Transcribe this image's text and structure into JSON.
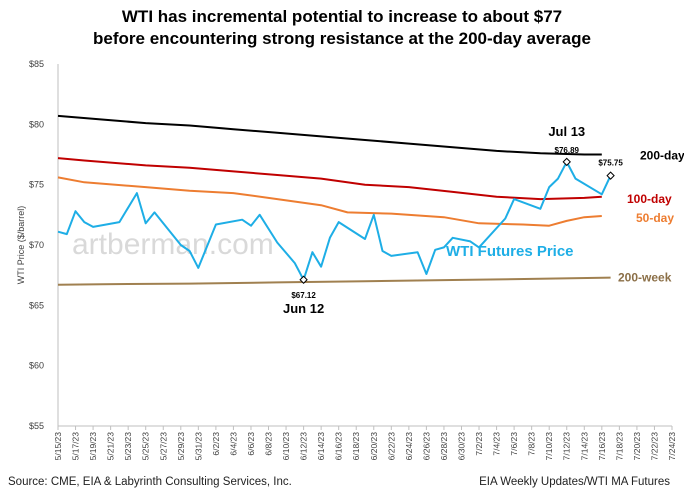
{
  "title_line1": "WTI has incremental potential to increase to about $77",
  "title_line2": "before encountering strong resistance at the 200-day average",
  "watermark": "artberman.com",
  "source_left": "Source:  CME, EIA & Labyrinth Consulting Services, Inc.",
  "source_right": "EIA Weekly Updates/WTI MA Futures",
  "chart_data": {
    "type": "line",
    "ylabel": "WTI Price ($/barrel)",
    "xlabel": "",
    "ylim": [
      55,
      85
    ],
    "yticks": [
      "$55",
      "$60",
      "$65",
      "$70",
      "$75",
      "$80",
      "$85"
    ],
    "xticks": [
      "5/15/23",
      "5/17/23",
      "5/19/23",
      "5/21/23",
      "5/23/23",
      "5/25/23",
      "5/27/23",
      "5/29/23",
      "5/31/23",
      "6/2/23",
      "6/4/23",
      "6/6/23",
      "6/8/23",
      "6/10/23",
      "6/12/23",
      "6/14/23",
      "6/16/23",
      "6/18/23",
      "6/20/23",
      "6/22/23",
      "6/24/23",
      "6/26/23",
      "6/28/23",
      "6/30/23",
      "7/2/23",
      "7/4/23",
      "7/6/23",
      "7/8/23",
      "7/10/23",
      "7/12/23",
      "7/14/23",
      "7/16/23",
      "7/18/23",
      "7/20/23",
      "7/22/23",
      "7/24/23"
    ],
    "grid": false,
    "series": [
      {
        "name": "200-day",
        "color": "#000000",
        "points": [
          [
            0,
            80.7
          ],
          [
            5,
            80.4
          ],
          [
            10,
            80.1
          ],
          [
            15,
            79.9
          ],
          [
            20,
            79.6
          ],
          [
            25,
            79.3
          ],
          [
            30,
            79.0
          ],
          [
            35,
            78.7
          ],
          [
            40,
            78.4
          ],
          [
            45,
            78.1
          ],
          [
            50,
            77.8
          ],
          [
            55,
            77.6
          ],
          [
            60,
            77.5
          ],
          [
            62,
            77.5
          ]
        ]
      },
      {
        "name": "100-day",
        "color": "#c00000",
        "points": [
          [
            0,
            77.2
          ],
          [
            3,
            77.0
          ],
          [
            10,
            76.6
          ],
          [
            15,
            76.4
          ],
          [
            20,
            76.1
          ],
          [
            25,
            75.8
          ],
          [
            30,
            75.5
          ],
          [
            35,
            75.0
          ],
          [
            40,
            74.8
          ],
          [
            45,
            74.4
          ],
          [
            50,
            74.0
          ],
          [
            55,
            73.8
          ],
          [
            60,
            73.9
          ],
          [
            62,
            74.0
          ]
        ]
      },
      {
        "name": "50-day",
        "color": "#ed7d31",
        "points": [
          [
            0,
            75.6
          ],
          [
            3,
            75.2
          ],
          [
            10,
            74.8
          ],
          [
            15,
            74.5
          ],
          [
            20,
            74.3
          ],
          [
            25,
            73.8
          ],
          [
            30,
            73.3
          ],
          [
            33,
            72.7
          ],
          [
            38,
            72.6
          ],
          [
            44,
            72.3
          ],
          [
            48,
            71.8
          ],
          [
            53,
            71.7
          ],
          [
            56,
            71.6
          ],
          [
            58,
            72.0
          ],
          [
            60,
            72.3
          ],
          [
            62,
            72.4
          ]
        ]
      },
      {
        "name": "WTI Futures Price",
        "color": "#1eaee6",
        "points": [
          [
            0,
            71.1
          ],
          [
            1,
            70.9
          ],
          [
            2,
            72.8
          ],
          [
            3,
            71.9
          ],
          [
            4,
            71.5
          ],
          [
            7,
            71.9
          ],
          [
            9,
            74.3
          ],
          [
            10,
            71.8
          ],
          [
            11,
            72.7
          ],
          [
            14,
            70.0
          ],
          [
            15,
            69.5
          ],
          [
            16,
            68.1
          ],
          [
            18,
            71.7
          ],
          [
            21,
            72.1
          ],
          [
            22,
            71.6
          ],
          [
            23,
            72.5
          ],
          [
            25,
            70.2
          ],
          [
            27,
            68.5
          ],
          [
            28,
            67.12
          ],
          [
            29,
            69.4
          ],
          [
            30,
            68.2
          ],
          [
            31,
            70.6
          ],
          [
            32,
            71.9
          ],
          [
            35,
            70.5
          ],
          [
            36,
            72.5
          ],
          [
            37,
            69.5
          ],
          [
            38,
            69.1
          ],
          [
            41,
            69.4
          ],
          [
            42,
            67.6
          ],
          [
            43,
            69.6
          ],
          [
            44,
            69.8
          ],
          [
            45,
            70.6
          ],
          [
            47,
            70.3
          ],
          [
            48,
            69.8
          ],
          [
            51,
            72.2
          ],
          [
            52,
            73.8
          ],
          [
            55,
            73.0
          ],
          [
            56,
            74.8
          ],
          [
            57,
            75.5
          ],
          [
            58,
            76.89
          ],
          [
            59,
            75.5
          ],
          [
            62,
            74.2
          ],
          [
            63,
            75.75
          ]
        ]
      },
      {
        "name": "200-week",
        "color": "#a08050",
        "points": [
          [
            0,
            66.7
          ],
          [
            5,
            66.75
          ],
          [
            15,
            66.8
          ],
          [
            25,
            66.9
          ],
          [
            35,
            67.0
          ],
          [
            45,
            67.1
          ],
          [
            55,
            67.2
          ],
          [
            63,
            67.3
          ]
        ]
      }
    ],
    "series_labels": {
      "200-day": "200-day",
      "100-day": "100-day",
      "50-day": "50-day",
      "WTI Futures Price": "WTI Futures Price",
      "200-week": "200-week"
    },
    "annotations": {
      "jun12_value": "$67.12",
      "jun12_date": "Jun 12",
      "jul13_value": "$76.89",
      "jul13_date": "Jul 13",
      "latest_value": "$75.75"
    }
  }
}
